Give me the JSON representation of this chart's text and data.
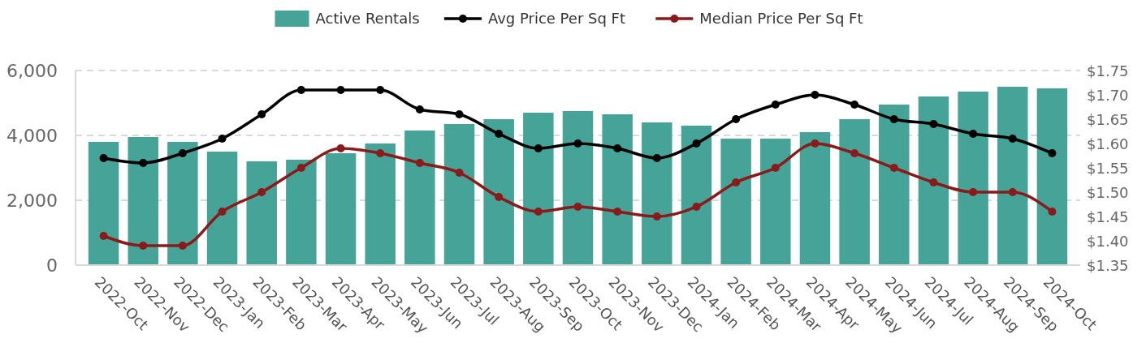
{
  "chart_data": {
    "type": "bar",
    "categories": [
      "2022-Oct",
      "2022-Nov",
      "2022-Dec",
      "2023-Jan",
      "2023-Feb",
      "2023-Mar",
      "2023-Apr",
      "2023-May",
      "2023-Jun",
      "2023-Jul",
      "2023-Aug",
      "2023-Sep",
      "2023-Oct",
      "2023-Nov",
      "2023-Dec",
      "2024-Jan",
      "2024-Feb",
      "2024-Mar",
      "2024-Apr",
      "2024-May",
      "2024-Jun",
      "2024-Jul",
      "2024-Aug",
      "2024-Sep",
      "2024-Oct"
    ],
    "series": [
      {
        "name": "Active Rentals",
        "color": "#45a398",
        "values": [
          3800,
          3950,
          3800,
          3500,
          3200,
          3250,
          3450,
          3750,
          4150,
          4350,
          4500,
          4700,
          4750,
          4650,
          4400,
          4300,
          3900,
          3900,
          4100,
          4500,
          4950,
          5200,
          5350,
          5500,
          5450
        ]
      },
      {
        "name": "Avg Price Per Sq Ft",
        "type": "line",
        "axis": "y2",
        "color": "#000000",
        "values": [
          1.57,
          1.56,
          1.58,
          1.61,
          1.66,
          1.71,
          1.71,
          1.71,
          1.67,
          1.66,
          1.62,
          1.59,
          1.6,
          1.59,
          1.57,
          1.6,
          1.65,
          1.68,
          1.7,
          1.68,
          1.65,
          1.64,
          1.62,
          1.61,
          1.58
        ]
      },
      {
        "name": "Median Price Per Sq Ft",
        "type": "line",
        "axis": "y2",
        "color": "#8b1a1a",
        "values": [
          1.41,
          1.39,
          1.39,
          1.46,
          1.5,
          1.55,
          1.59,
          1.58,
          1.56,
          1.54,
          1.49,
          1.46,
          1.47,
          1.46,
          1.45,
          1.47,
          1.52,
          1.55,
          1.6,
          1.58,
          1.55,
          1.52,
          1.5,
          1.5,
          1.46
        ]
      }
    ],
    "ylim": [
      0,
      6000
    ],
    "yticks": [
      0,
      {
        "value": 2000,
        "label": "2,000"
      },
      {
        "value": 4000,
        "label": "4,000"
      },
      {
        "value": 6000,
        "label": "6,000"
      }
    ],
    "y2lim": [
      1.35,
      1.75
    ],
    "y2ticks": [
      {
        "value": 1.35,
        "label": "$1.35"
      },
      {
        "value": 1.4,
        "label": "$1.40"
      },
      {
        "value": 1.45,
        "label": "$1.45"
      },
      {
        "value": 1.5,
        "label": "$1.50"
      },
      {
        "value": 1.55,
        "label": "$1.55"
      },
      {
        "value": 1.6,
        "label": "$1.60"
      },
      {
        "value": 1.65,
        "label": "$1.65"
      },
      {
        "value": 1.7,
        "label": "$1.70"
      },
      {
        "value": 1.75,
        "label": "$1.75"
      }
    ],
    "grid": "y",
    "legend": "top",
    "marker": "circle",
    "line_style": "solid"
  }
}
